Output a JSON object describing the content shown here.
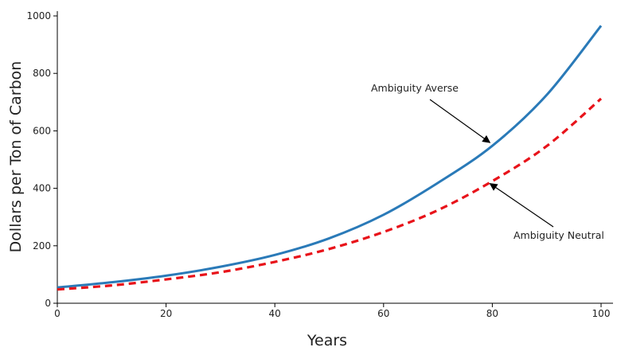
{
  "chart_data": {
    "type": "line",
    "title": "",
    "xlabel": "Years",
    "ylabel": "Dollars per Ton of Carbon",
    "xlim": [
      0,
      100
    ],
    "ylim": [
      0,
      1000
    ],
    "x_ticks": [
      "0",
      "20",
      "40",
      "60",
      "80",
      "100"
    ],
    "y_ticks": [
      "0",
      "200",
      "400",
      "600",
      "800",
      "1000"
    ],
    "grid": false,
    "legend": "none",
    "x": [
      0,
      10,
      20,
      30,
      40,
      50,
      60,
      70,
      80,
      90,
      100
    ],
    "series": [
      {
        "name": "Ambiguity Averse",
        "color": "#2a7ab8",
        "style": "solid",
        "values": [
          55,
          73,
          96,
          127,
          168,
          226,
          308,
          419,
          548,
          725,
          966
        ]
      },
      {
        "name": "Ambiguity Neutral",
        "color": "#e8131a",
        "style": "dashed",
        "values": [
          48,
          62,
          83,
          108,
          144,
          189,
          248,
          324,
          425,
          547,
          712
        ]
      }
    ],
    "annotations": [
      {
        "text": "Ambiguity Averse",
        "series": 0,
        "point_x": 80
      },
      {
        "text": "Ambiguity Neutral",
        "series": 1,
        "point_x": 80
      }
    ]
  }
}
